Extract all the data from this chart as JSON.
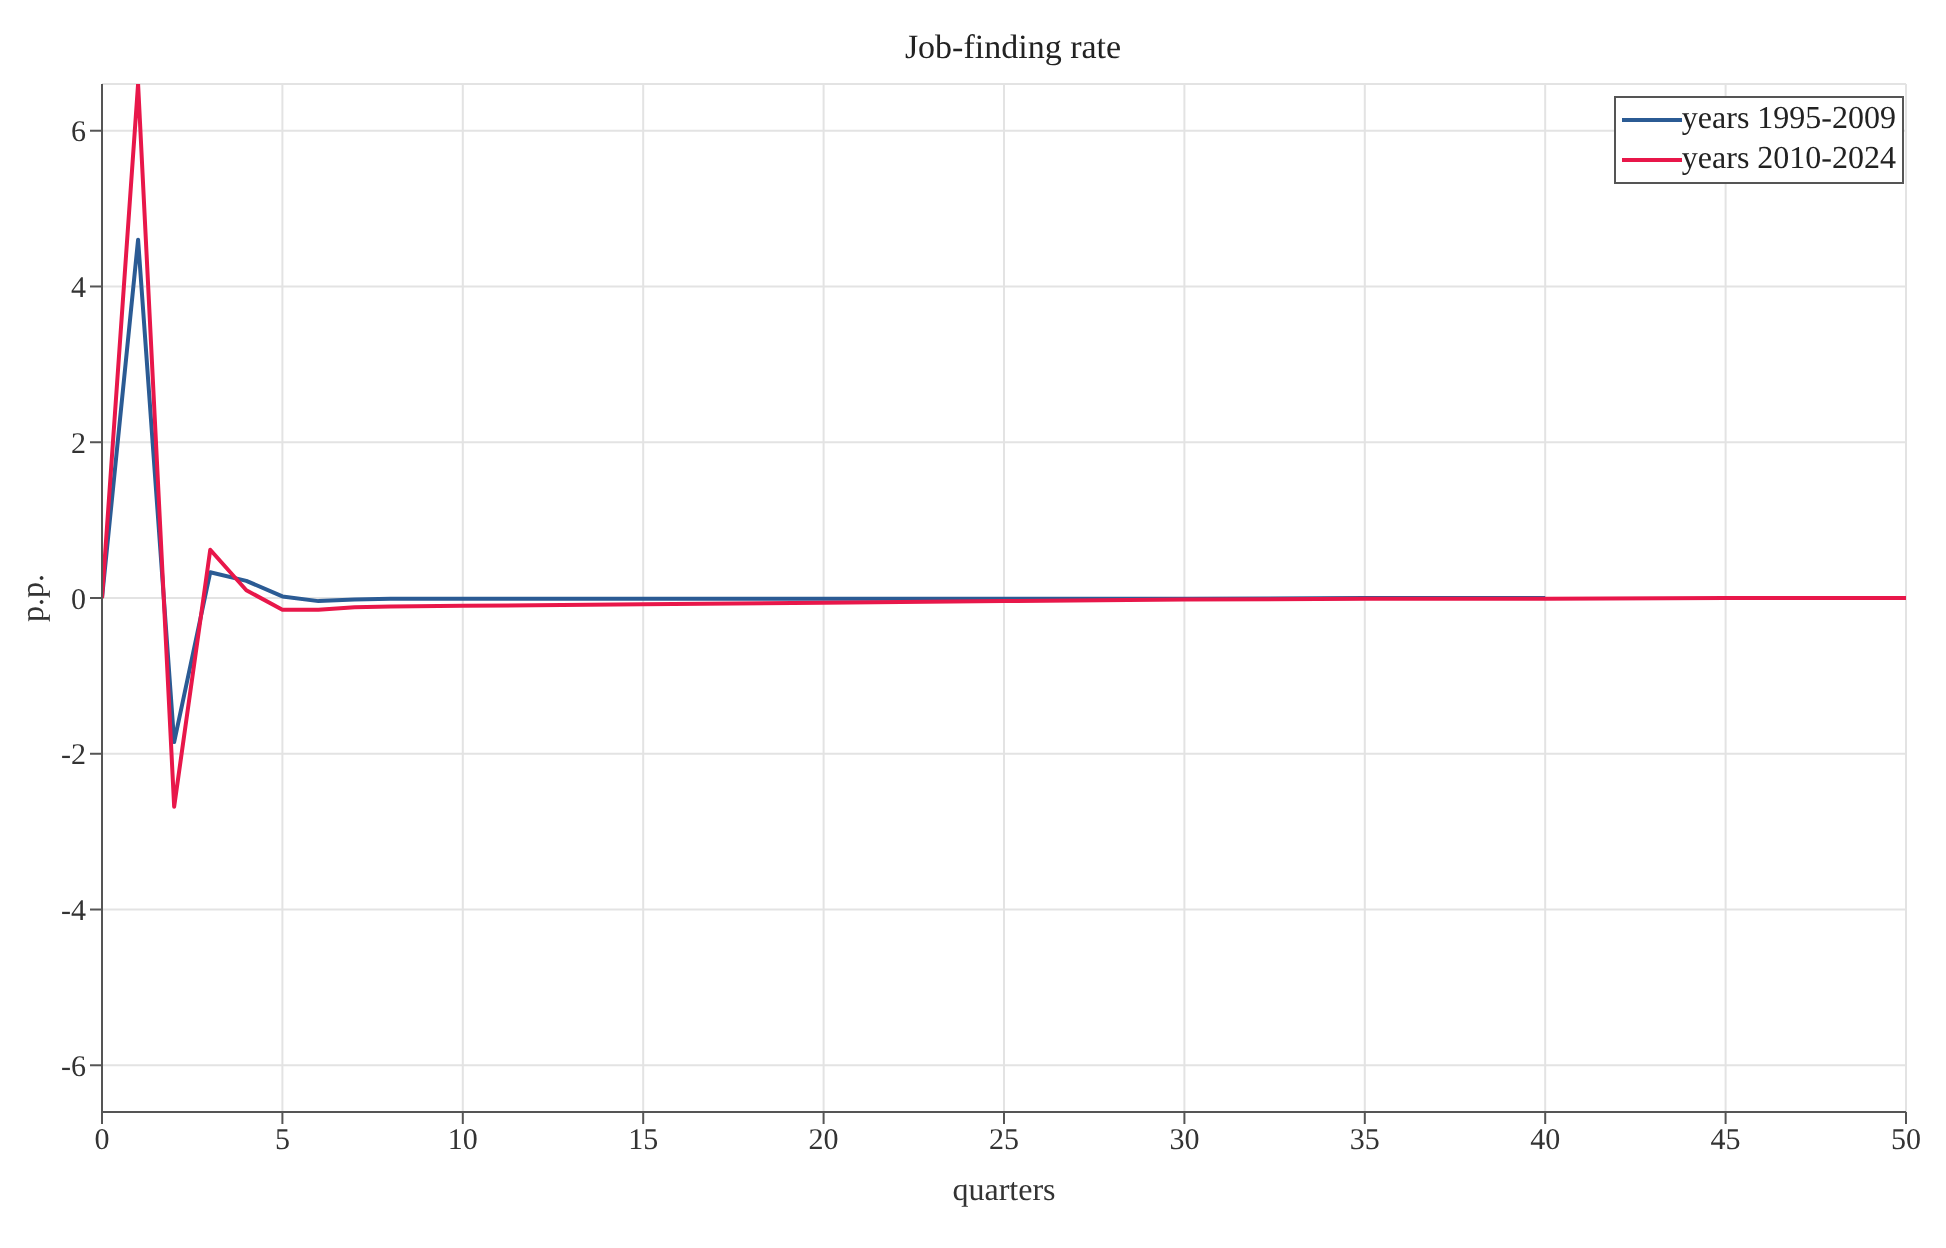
{
  "chart_data": {
    "type": "line",
    "title": "Job-finding rate",
    "xlabel": "quarters",
    "ylabel": "p.p.",
    "x": [
      0,
      1,
      2,
      3,
      4,
      5,
      6,
      7,
      8,
      10,
      15,
      20,
      25,
      30,
      35,
      40,
      45,
      50
    ],
    "series": [
      {
        "name": "years 1995-2009",
        "color": "#2b5b94",
        "values": [
          0,
          4.6,
          -1.85,
          0.33,
          0.22,
          0.02,
          -0.04,
          -0.02,
          -0.01,
          -0.01,
          -0.01,
          -0.01,
          -0.01,
          -0.01,
          0,
          0,
          null,
          null
        ]
      },
      {
        "name": "years 2010-2024",
        "color": "#e8174a",
        "values": [
          0,
          6.6,
          -2.68,
          0.62,
          0.1,
          -0.15,
          -0.15,
          -0.12,
          -0.11,
          -0.1,
          -0.08,
          -0.06,
          -0.04,
          -0.02,
          -0.01,
          -0.01,
          0,
          0
        ]
      }
    ],
    "xlim": [
      0,
      50
    ],
    "xticks": [
      0,
      5,
      10,
      15,
      20,
      25,
      30,
      35,
      40,
      45,
      50
    ],
    "ylim": [
      -6.6,
      6.6
    ],
    "yticks": [
      -6,
      -4,
      -2,
      0,
      2,
      4,
      6
    ],
    "grid": true,
    "legend": "top right",
    "marker": "none",
    "line_style": "solid"
  }
}
